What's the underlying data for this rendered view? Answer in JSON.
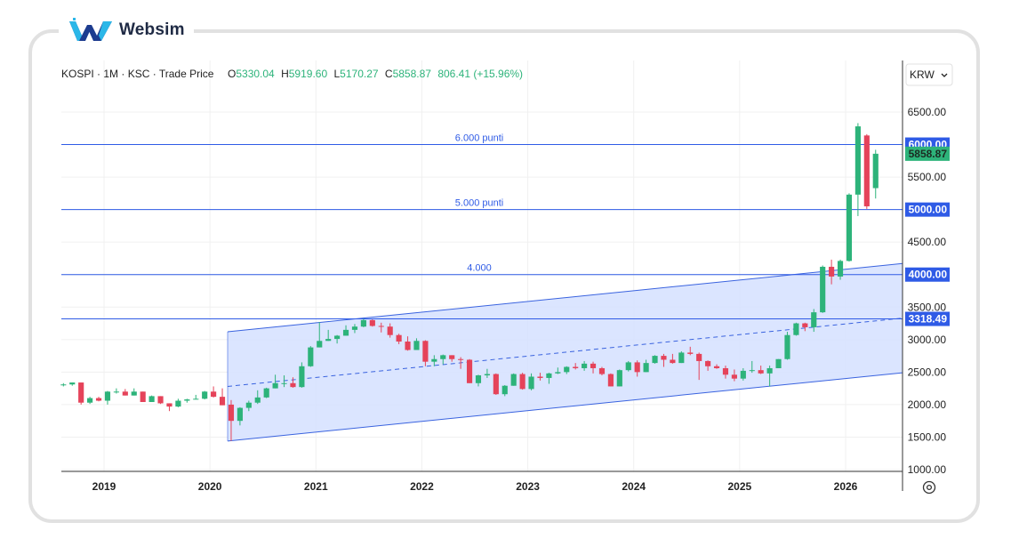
{
  "brand": {
    "name": "Websim"
  },
  "header": {
    "symbol": "KOSPI",
    "interval": "1M",
    "exchange": "KSC",
    "price_type": "Trade Price",
    "open": "5330.04",
    "high": "5919.60",
    "low": "5170.27",
    "close": "5858.87",
    "change": "806.41 (+15.96%)"
  },
  "currency": "KRW",
  "colors": {
    "up": "#2db37a",
    "down": "#e5435a",
    "level_line": "#2f5be6",
    "channel_fill": "#d5e1ff",
    "channel_line": "#3a63df"
  },
  "chart_data": {
    "type": "candlestick",
    "interval": "monthly",
    "x_ticks": [
      "2019",
      "2020",
      "2021",
      "2022",
      "2023",
      "2024",
      "2025",
      "2026"
    ],
    "y_ticks": [
      1000,
      1500,
      2000,
      2500,
      3000,
      3500,
      4000,
      4500,
      5000,
      5500,
      6000,
      6500
    ],
    "ylim": [
      950,
      6850
    ],
    "last_price": 5858.87,
    "horizontal_levels": [
      {
        "value": 6000,
        "label": "6.000 punti",
        "badge": "6000.00"
      },
      {
        "value": 5000,
        "label": "5.000 punti",
        "badge": "5000.00"
      },
      {
        "value": 4000,
        "label": "4.000",
        "badge": "4000.00"
      },
      {
        "value": 3318.49,
        "label": "",
        "badge": "3318.49"
      }
    ],
    "channel": {
      "start": "2020-03",
      "end_label": "2026-05",
      "upper_start": 3120,
      "upper_end": 4170,
      "mid_start": 2280,
      "mid_end": 3330,
      "lower_start": 1440,
      "lower_end": 2490
    },
    "candles": [
      [
        "2018-08",
        2300,
        2330,
        2280,
        2310
      ],
      [
        "2018-09",
        2310,
        2340,
        2290,
        2340
      ],
      [
        "2018-10",
        2340,
        2340,
        2000,
        2030
      ],
      [
        "2018-11",
        2030,
        2120,
        2010,
        2100
      ],
      [
        "2018-12",
        2100,
        2120,
        2050,
        2060
      ],
      [
        "2019-01",
        2060,
        2210,
        2000,
        2200
      ],
      [
        "2019-02",
        2200,
        2250,
        2170,
        2200
      ],
      [
        "2019-03",
        2200,
        2240,
        2140,
        2140
      ],
      [
        "2019-04",
        2140,
        2250,
        2140,
        2200
      ],
      [
        "2019-05",
        2200,
        2200,
        2040,
        2040
      ],
      [
        "2019-06",
        2040,
        2140,
        2040,
        2130
      ],
      [
        "2019-07",
        2130,
        2130,
        2010,
        2020
      ],
      [
        "2019-08",
        2020,
        2020,
        1900,
        1970
      ],
      [
        "2019-09",
        1970,
        2090,
        1960,
        2060
      ],
      [
        "2019-10",
        2060,
        2090,
        2030,
        2080
      ],
      [
        "2019-11",
        2080,
        2150,
        2080,
        2090
      ],
      [
        "2019-12",
        2090,
        2210,
        2080,
        2200
      ],
      [
        "2020-01",
        2200,
        2280,
        2110,
        2120
      ],
      [
        "2020-02",
        2120,
        2250,
        1990,
        1990
      ],
      [
        "2020-03",
        2000,
        2070,
        1440,
        1750
      ],
      [
        "2020-04",
        1750,
        1960,
        1680,
        1950
      ],
      [
        "2020-05",
        1950,
        2060,
        1900,
        2030
      ],
      [
        "2020-06",
        2030,
        2220,
        2010,
        2110
      ],
      [
        "2020-07",
        2110,
        2260,
        2100,
        2250
      ],
      [
        "2020-08",
        2250,
        2460,
        2250,
        2330
      ],
      [
        "2020-09",
        2330,
        2450,
        2270,
        2330
      ],
      [
        "2020-10",
        2330,
        2420,
        2260,
        2270
      ],
      [
        "2020-11",
        2270,
        2650,
        2260,
        2590
      ],
      [
        "2020-12",
        2590,
        2900,
        2580,
        2880
      ],
      [
        "2021-01",
        2880,
        3270,
        2880,
        2980
      ],
      [
        "2021-02",
        2980,
        3150,
        2980,
        3010
      ],
      [
        "2021-03",
        3010,
        3070,
        2940,
        3060
      ],
      [
        "2021-04",
        3060,
        3220,
        3060,
        3150
      ],
      [
        "2021-05",
        3150,
        3240,
        3100,
        3200
      ],
      [
        "2021-06",
        3200,
        3320,
        3190,
        3300
      ],
      [
        "2021-07",
        3300,
        3310,
        3200,
        3210
      ],
      [
        "2021-08",
        3210,
        3260,
        3110,
        3200
      ],
      [
        "2021-09",
        3200,
        3250,
        3030,
        3070
      ],
      [
        "2021-10",
        3070,
        3090,
        2930,
        2970
      ],
      [
        "2021-11",
        2970,
        3050,
        2830,
        2840
      ],
      [
        "2021-12",
        2840,
        3020,
        2840,
        2980
      ],
      [
        "2022-01",
        2980,
        2990,
        2590,
        2660
      ],
      [
        "2022-02",
        2660,
        2760,
        2590,
        2700
      ],
      [
        "2022-03",
        2700,
        2770,
        2620,
        2760
      ],
      [
        "2022-04",
        2760,
        2760,
        2660,
        2700
      ],
      [
        "2022-05",
        2700,
        2730,
        2550,
        2690
      ],
      [
        "2022-06",
        2690,
        2700,
        2330,
        2330
      ],
      [
        "2022-07",
        2330,
        2460,
        2280,
        2450
      ],
      [
        "2022-08",
        2450,
        2550,
        2410,
        2470
      ],
      [
        "2022-09",
        2470,
        2480,
        2150,
        2160
      ],
      [
        "2022-10",
        2160,
        2300,
        2130,
        2290
      ],
      [
        "2022-11",
        2290,
        2480,
        2290,
        2470
      ],
      [
        "2022-12",
        2470,
        2490,
        2230,
        2240
      ],
      [
        "2023-01",
        2240,
        2480,
        2220,
        2430
      ],
      [
        "2023-02",
        2430,
        2490,
        2370,
        2410
      ],
      [
        "2023-03",
        2410,
        2490,
        2320,
        2480
      ],
      [
        "2023-04",
        2480,
        2570,
        2470,
        2500
      ],
      [
        "2023-05",
        2500,
        2590,
        2470,
        2580
      ],
      [
        "2023-06",
        2580,
        2640,
        2540,
        2560
      ],
      [
        "2023-07",
        2560,
        2670,
        2520,
        2630
      ],
      [
        "2023-08",
        2630,
        2660,
        2480,
        2560
      ],
      [
        "2023-09",
        2560,
        2580,
        2450,
        2470
      ],
      [
        "2023-10",
        2470,
        2480,
        2280,
        2280
      ],
      [
        "2023-11",
        2280,
        2540,
        2280,
        2530
      ],
      [
        "2023-12",
        2530,
        2670,
        2510,
        2650
      ],
      [
        "2024-01",
        2650,
        2680,
        2430,
        2500
      ],
      [
        "2024-02",
        2500,
        2690,
        2500,
        2640
      ],
      [
        "2024-03",
        2640,
        2760,
        2630,
        2750
      ],
      [
        "2024-04",
        2750,
        2780,
        2580,
        2690
      ],
      [
        "2024-05",
        2690,
        2780,
        2630,
        2640
      ],
      [
        "2024-06",
        2640,
        2820,
        2640,
        2800
      ],
      [
        "2024-07",
        2800,
        2890,
        2760,
        2780
      ],
      [
        "2024-08",
        2780,
        2800,
        2380,
        2670
      ],
      [
        "2024-09",
        2670,
        2680,
        2520,
        2590
      ],
      [
        "2024-10",
        2590,
        2620,
        2550,
        2560
      ],
      [
        "2024-11",
        2560,
        2600,
        2400,
        2460
      ],
      [
        "2024-12",
        2460,
        2540,
        2360,
        2400
      ],
      [
        "2025-01",
        2400,
        2560,
        2370,
        2520
      ],
      [
        "2025-02",
        2520,
        2670,
        2490,
        2530
      ],
      [
        "2025-03",
        2530,
        2600,
        2470,
        2480
      ],
      [
        "2025-04",
        2480,
        2600,
        2280,
        2560
      ],
      [
        "2025-05",
        2560,
        2700,
        2560,
        2700
      ],
      [
        "2025-06",
        2700,
        3120,
        2690,
        3070
      ],
      [
        "2025-07",
        3070,
        3260,
        3060,
        3250
      ],
      [
        "2025-08",
        3250,
        3260,
        3130,
        3190
      ],
      [
        "2025-09",
        3190,
        3470,
        3120,
        3420
      ],
      [
        "2025-10",
        3420,
        4140,
        3410,
        4120
      ],
      [
        "2025-11",
        4120,
        4230,
        3850,
        3970
      ],
      [
        "2025-12",
        3970,
        4230,
        3920,
        4210
      ],
      [
        "2026-01",
        4210,
        5250,
        4200,
        5230
      ],
      [
        "2026-02",
        5230,
        6330,
        4900,
        6280
      ],
      [
        "2026-03",
        6140,
        6160,
        5010,
        5050
      ],
      [
        "2026-04",
        5330.04,
        5919.6,
        5170.27,
        5858.87
      ]
    ]
  }
}
